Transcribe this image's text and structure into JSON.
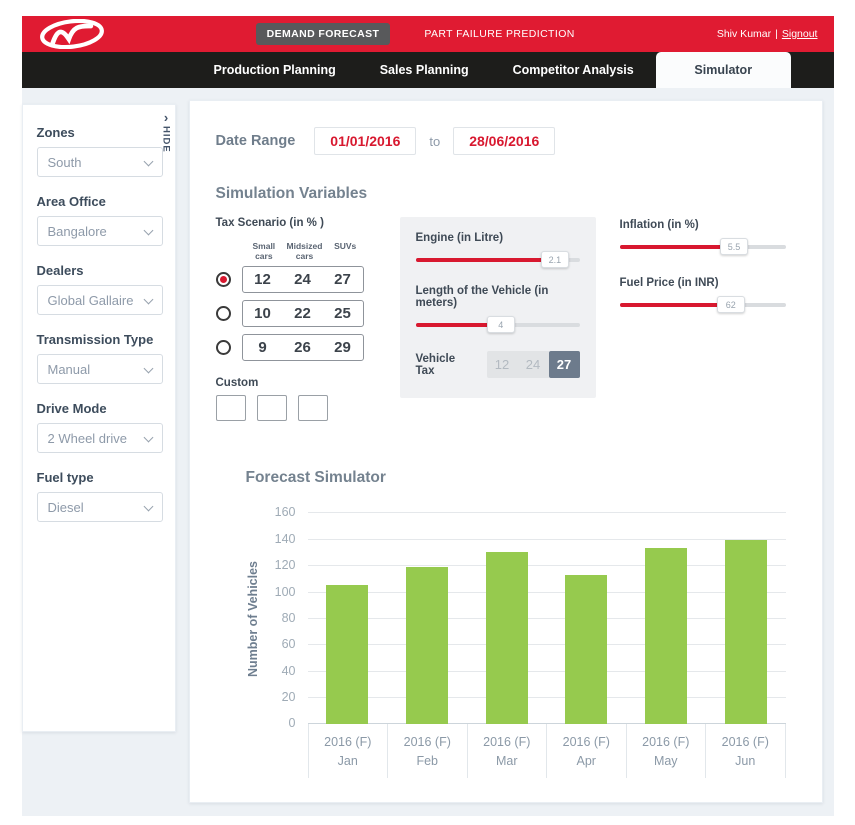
{
  "colors": {
    "header_red": "#e01b32",
    "accent_red": "#d8182f",
    "nav_black": "#1d1d1b",
    "bar_green": "#96ca4e",
    "selected_slate": "#6d7b8c"
  },
  "header": {
    "brand": "Mahindra",
    "demand_forecast_label": "DEMAND FORECAST",
    "part_failure_label": "PART FAILURE PREDICTION",
    "user_name": "Shiv Kumar",
    "separator": "|",
    "signout_label": "Signout"
  },
  "nav": {
    "tabs": [
      "Production Planning",
      "Sales Planning",
      "Competitor Analysis"
    ],
    "active_tab": "Simulator"
  },
  "sidebar": {
    "hide_label": "HIDE",
    "hide_chevron": "›",
    "filters": [
      {
        "label": "Zones",
        "value": "South"
      },
      {
        "label": "Area Office",
        "value": "Bangalore"
      },
      {
        "label": "Dealers",
        "value": "Global Gallaire"
      },
      {
        "label": "Transmission Type",
        "value": "Manual"
      },
      {
        "label": "Drive Mode",
        "value": "2 Wheel drive"
      },
      {
        "label": "Fuel type",
        "value": "Diesel"
      }
    ]
  },
  "main": {
    "date_range": {
      "label": "Date Range",
      "from_value": "01/01/2016",
      "to_word": "to",
      "to_value": "28/06/2016"
    },
    "simulation": {
      "title": "Simulation Variables",
      "tax_scenario": {
        "label": "Tax Scenario (in % )",
        "columns": [
          "Small cars",
          "Midsized cars",
          "SUVs"
        ],
        "rows": [
          {
            "values": [
              "12",
              "24",
              "27"
            ],
            "selected": true
          },
          {
            "values": [
              "10",
              "22",
              "25"
            ],
            "selected": false
          },
          {
            "values": [
              "9",
              "26",
              "29"
            ],
            "selected": false
          }
        ],
        "custom_label": "Custom",
        "custom_inputs": [
          "",
          "",
          ""
        ]
      },
      "sliders": [
        {
          "label": "Engine (in Litre)",
          "value": "2.1",
          "percent": 85
        },
        {
          "label": "Length of the Vehicle (in meters)",
          "value": "4",
          "percent": 52
        },
        {
          "label": "Inflation (in %)",
          "value": "5.5",
          "percent": 69
        },
        {
          "label": "Fuel Price (in INR)",
          "value": "62",
          "percent": 67
        }
      ],
      "vehicle_tax": {
        "label": "Vehicle Tax",
        "options": [
          "12",
          "24",
          "27"
        ],
        "selected": "27"
      }
    }
  },
  "chart_data": {
    "type": "bar",
    "title": "Forecast Simulator",
    "ylabel": "Number of Vehicles",
    "ylim": [
      0,
      160
    ],
    "ytick_step": 20,
    "grid": true,
    "legend": false,
    "bar_color": "#96ca4e",
    "category_year_label": "2016 (F)",
    "categories": [
      "Jan",
      "Feb",
      "Mar",
      "Apr",
      "May",
      "Jun"
    ],
    "values": [
      106,
      119,
      131,
      113,
      134,
      140
    ]
  }
}
